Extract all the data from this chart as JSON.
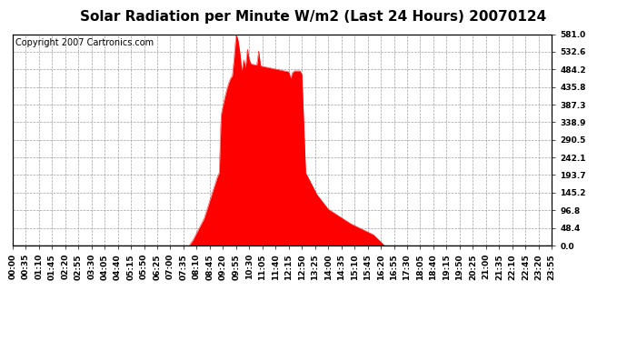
{
  "title": "Solar Radiation per Minute W/m2 (Last 24 Hours) 20070124",
  "copyright_text": "Copyright 2007 Cartronics.com",
  "ylim": [
    0.0,
    581.0
  ],
  "yticks": [
    0.0,
    48.4,
    96.8,
    145.2,
    193.7,
    242.1,
    290.5,
    338.9,
    387.3,
    435.8,
    484.2,
    532.6,
    581.0
  ],
  "fill_color": "#FF0000",
  "line_color": "#FF0000",
  "grid_color": "#888888",
  "bg_color": "#FFFFFF",
  "dashed_zero_color": "#FF0000",
  "title_fontsize": 11,
  "copyright_fontsize": 7,
  "tick_fontsize": 6.5,
  "xtick_labels": [
    "00:00",
    "00:35",
    "01:10",
    "01:45",
    "02:20",
    "02:55",
    "03:30",
    "04:05",
    "04:40",
    "05:15",
    "05:50",
    "06:25",
    "07:00",
    "07:35",
    "08:10",
    "08:45",
    "09:20",
    "09:55",
    "10:30",
    "11:05",
    "11:40",
    "12:15",
    "12:50",
    "13:25",
    "14:00",
    "14:35",
    "15:10",
    "15:45",
    "16:20",
    "16:55",
    "17:30",
    "18:05",
    "18:40",
    "19:15",
    "19:50",
    "20:25",
    "21:00",
    "21:35",
    "22:10",
    "22:45",
    "23:20",
    "23:55"
  ]
}
